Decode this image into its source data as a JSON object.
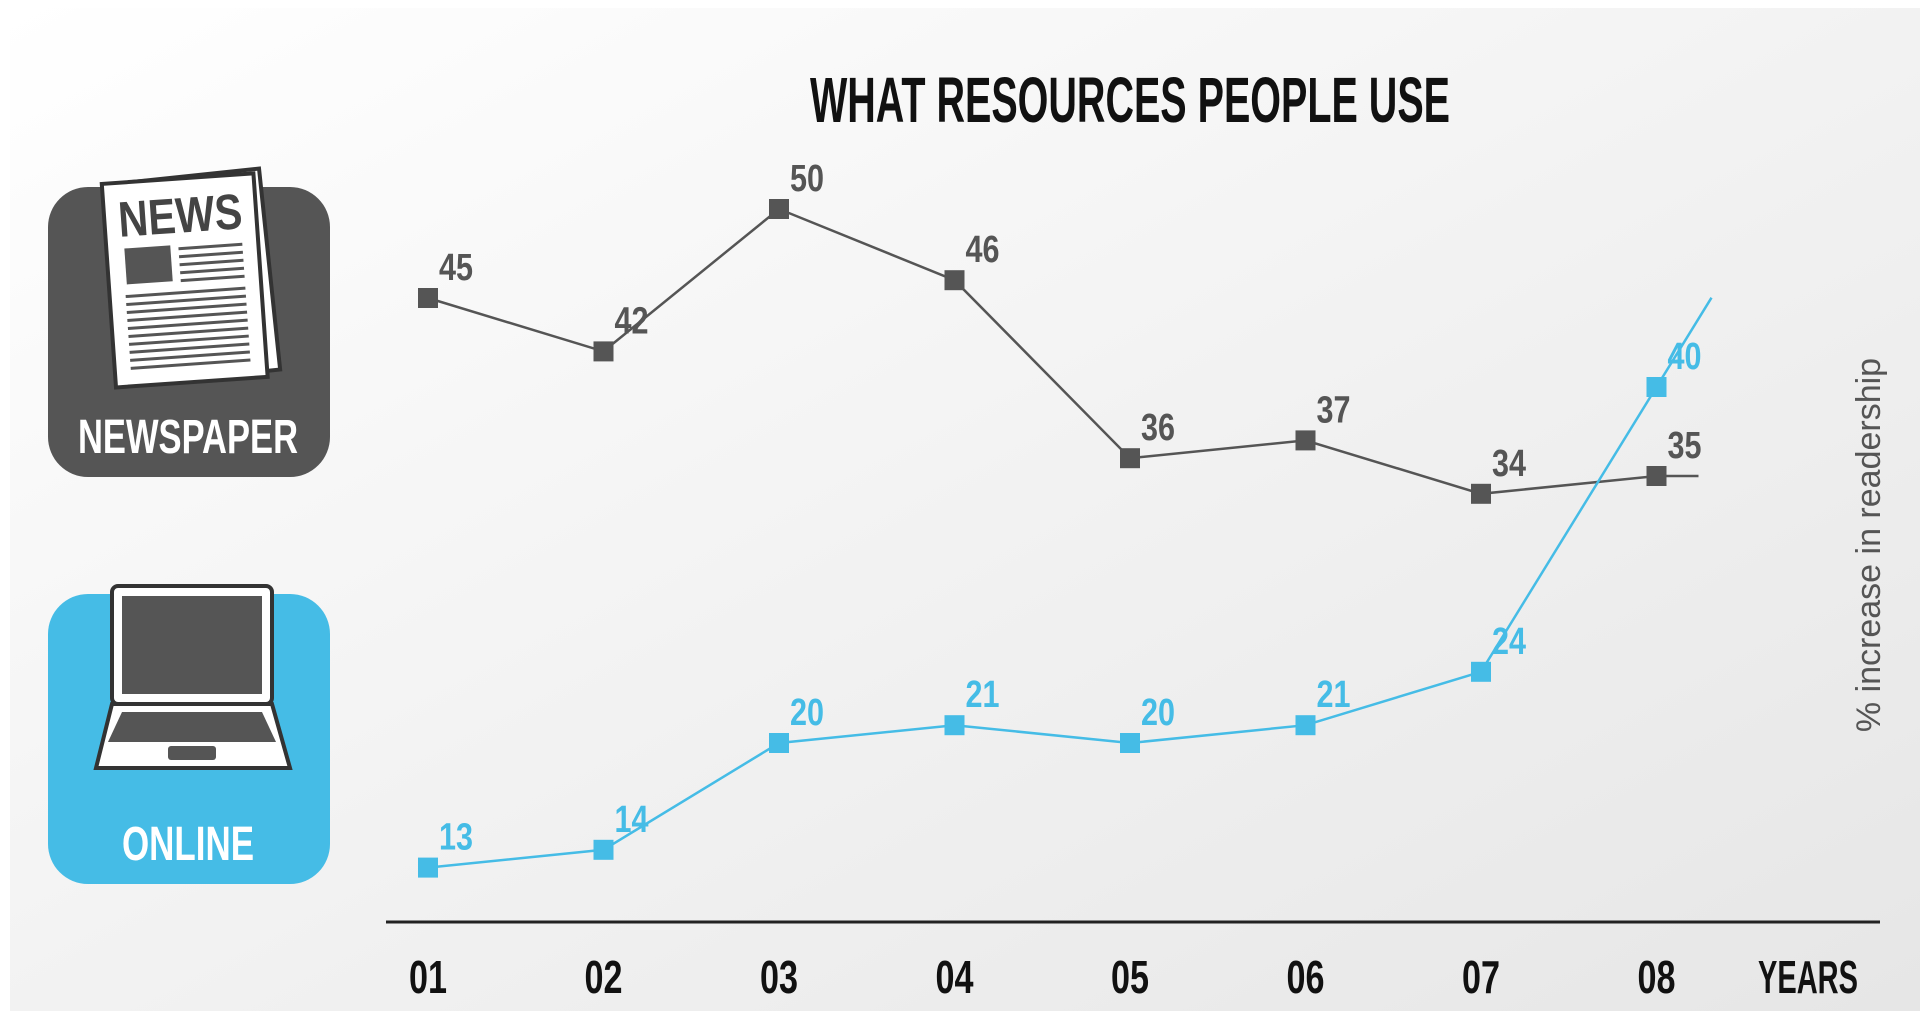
{
  "chart_data": {
    "type": "line",
    "title": "WHAT RESOURCES PEOPLE USE",
    "xlabel": "YEARS",
    "ylabel": "% increase in readership",
    "categories": [
      "01",
      "02",
      "03",
      "04",
      "05",
      "06",
      "07",
      "08"
    ],
    "ylim": [
      5,
      55
    ],
    "grid": false,
    "legend": "left",
    "series": [
      {
        "name": "NEWSPAPER",
        "color": "#555555",
        "icon": "newspaper-icon",
        "values": [
          45,
          42,
          50,
          46,
          36,
          37,
          34,
          35
        ]
      },
      {
        "name": "ONLINE",
        "color": "#45bce6",
        "icon": "laptop-icon",
        "values": [
          13,
          14,
          20,
          21,
          20,
          21,
          24,
          40
        ]
      }
    ],
    "icon_text": "NEWS"
  }
}
